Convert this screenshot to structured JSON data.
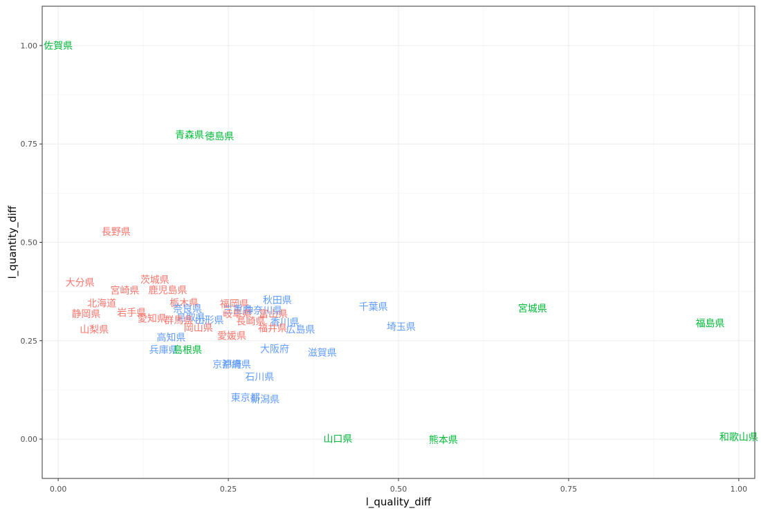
{
  "chart_data": {
    "type": "scatter",
    "title": "",
    "xlabel": "l_quality_diff",
    "ylabel": "l_quantity_diff",
    "xlim": [
      -0.0235,
      1.0235
    ],
    "ylim": [
      -0.1,
      1.1
    ],
    "xticks": [
      "0.00",
      "0.25",
      "0.50",
      "0.75",
      "1.00"
    ],
    "xtick_values": [
      0,
      0.25,
      0.5,
      0.75,
      1.0
    ],
    "yticks": [
      "0.00",
      "0.25",
      "0.50",
      "0.75",
      "1.00"
    ],
    "ytick_values": [
      0,
      0.25,
      0.5,
      0.75,
      1.0
    ],
    "grid": true,
    "legend": "none",
    "colors": {
      "red": "#F8766D",
      "green": "#00BA38",
      "blue": "#619CFF"
    },
    "points": [
      {
        "label": "佐賀県",
        "x": 0.0,
        "y": 1.0,
        "color": "green"
      },
      {
        "label": "青森県",
        "x": 0.193,
        "y": 0.773,
        "color": "green"
      },
      {
        "label": "徳島県",
        "x": 0.237,
        "y": 0.77,
        "color": "green"
      },
      {
        "label": "長野県",
        "x": 0.085,
        "y": 0.527,
        "color": "red"
      },
      {
        "label": "大分県",
        "x": 0.032,
        "y": 0.398,
        "color": "red"
      },
      {
        "label": "茨城県",
        "x": 0.142,
        "y": 0.405,
        "color": "red"
      },
      {
        "label": "宮崎県",
        "x": 0.098,
        "y": 0.378,
        "color": "red"
      },
      {
        "label": "鹿児島県",
        "x": 0.161,
        "y": 0.379,
        "color": "red"
      },
      {
        "label": "北海道",
        "x": 0.064,
        "y": 0.345,
        "color": "red"
      },
      {
        "label": "栃木県",
        "x": 0.185,
        "y": 0.346,
        "color": "red"
      },
      {
        "label": "福岡県",
        "x": 0.259,
        "y": 0.344,
        "color": "red"
      },
      {
        "label": "秋田県",
        "x": 0.322,
        "y": 0.353,
        "color": "blue"
      },
      {
        "label": "千葉県",
        "x": 0.463,
        "y": 0.337,
        "color": "blue"
      },
      {
        "label": "宮城県",
        "x": 0.697,
        "y": 0.332,
        "color": "green"
      },
      {
        "label": "静岡県",
        "x": 0.041,
        "y": 0.318,
        "color": "red"
      },
      {
        "label": "岩手県",
        "x": 0.108,
        "y": 0.322,
        "color": "red"
      },
      {
        "label": "奈良県",
        "x": 0.19,
        "y": 0.331,
        "color": "blue"
      },
      {
        "label": "三重県",
        "x": 0.264,
        "y": 0.329,
        "color": "blue"
      },
      {
        "label": "神奈川県",
        "x": 0.301,
        "y": 0.327,
        "color": "blue"
      },
      {
        "label": "愛知県",
        "x": 0.138,
        "y": 0.307,
        "color": "red"
      },
      {
        "label": "鳥取県",
        "x": 0.195,
        "y": 0.309,
        "color": "blue"
      },
      {
        "label": "山形県",
        "x": 0.222,
        "y": 0.302,
        "color": "blue"
      },
      {
        "label": "山梨県",
        "x": 0.053,
        "y": 0.279,
        "color": "red"
      },
      {
        "label": "群馬県",
        "x": 0.177,
        "y": 0.302,
        "color": "red"
      },
      {
        "label": "岐阜県",
        "x": 0.263,
        "y": 0.318,
        "color": "red"
      },
      {
        "label": "富山県",
        "x": 0.316,
        "y": 0.318,
        "color": "red"
      },
      {
        "label": "長崎県",
        "x": 0.283,
        "y": 0.3,
        "color": "red"
      },
      {
        "label": "岡山県",
        "x": 0.206,
        "y": 0.283,
        "color": "red"
      },
      {
        "label": "香川県",
        "x": 0.333,
        "y": 0.297,
        "color": "blue"
      },
      {
        "label": "福井県",
        "x": 0.315,
        "y": 0.282,
        "color": "red"
      },
      {
        "label": "広島県",
        "x": 0.356,
        "y": 0.279,
        "color": "blue"
      },
      {
        "label": "埼玉県",
        "x": 0.504,
        "y": 0.286,
        "color": "blue"
      },
      {
        "label": "福島県",
        "x": 0.958,
        "y": 0.294,
        "color": "green"
      },
      {
        "label": "愛媛県",
        "x": 0.255,
        "y": 0.263,
        "color": "red"
      },
      {
        "label": "高知県",
        "x": 0.166,
        "y": 0.258,
        "color": "blue"
      },
      {
        "label": "大阪府",
        "x": 0.318,
        "y": 0.229,
        "color": "blue"
      },
      {
        "label": "滋賀県",
        "x": 0.388,
        "y": 0.22,
        "color": "blue"
      },
      {
        "label": "兵庫県",
        "x": 0.155,
        "y": 0.227,
        "color": "blue"
      },
      {
        "label": "島根県",
        "x": 0.19,
        "y": 0.227,
        "color": "green"
      },
      {
        "label": "京都府",
        "x": 0.248,
        "y": 0.19,
        "color": "blue"
      },
      {
        "label": "沖縄県",
        "x": 0.262,
        "y": 0.19,
        "color": "blue"
      },
      {
        "label": "石川県",
        "x": 0.296,
        "y": 0.158,
        "color": "blue"
      },
      {
        "label": "東京都",
        "x": 0.275,
        "y": 0.106,
        "color": "blue"
      },
      {
        "label": "新潟県",
        "x": 0.304,
        "y": 0.101,
        "color": "blue"
      },
      {
        "label": "山口県",
        "x": 0.411,
        "y": 0.001,
        "color": "green"
      },
      {
        "label": "熊本県",
        "x": 0.566,
        "y": -0.002,
        "color": "green"
      },
      {
        "label": "和歌山県",
        "x": 1.0,
        "y": 0.005,
        "color": "green"
      }
    ]
  }
}
